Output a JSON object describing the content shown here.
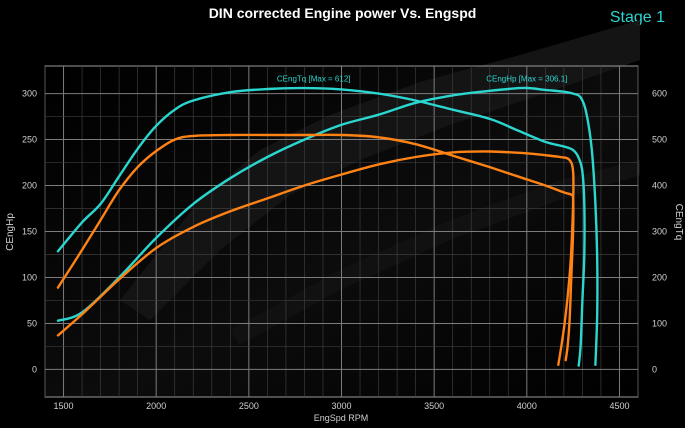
{
  "header": {
    "title": "DIN corrected Engine power Vs. Engspd",
    "stage": "Stage 1"
  },
  "chart_data": {
    "type": "line",
    "title": "DIN corrected Engine power Vs. Engspd",
    "xlabel": "EngSpd RPM",
    "ylabel": "CEngHp",
    "y2label": "CEngTq",
    "xlim": [
      1400,
      4600
    ],
    "ylim": [
      -30,
      330
    ],
    "y2lim": [
      -60,
      660
    ],
    "xticks": [
      1500,
      2000,
      2500,
      3000,
      3500,
      4000,
      4500
    ],
    "yticks": [
      0,
      50,
      100,
      150,
      200,
      250,
      300
    ],
    "y2ticks": [
      0,
      100,
      200,
      300,
      400,
      500,
      600
    ],
    "grid": true,
    "annotations": [
      {
        "text": "CEngTq [Max = 612]",
        "x": 2850,
        "y": 313
      },
      {
        "text": "CEngHp [Max = 306.1]",
        "x": 4000,
        "y": 313
      }
    ],
    "colors": {
      "tuned": "#2bd6cf",
      "stock": "#ff8214"
    },
    "series": [
      {
        "group": "tuned",
        "quantity": "torque",
        "axis": "y2",
        "points": [
          [
            1470,
            257
          ],
          [
            1600,
            320
          ],
          [
            1700,
            360
          ],
          [
            1800,
            420
          ],
          [
            1900,
            480
          ],
          [
            2000,
            530
          ],
          [
            2100,
            565
          ],
          [
            2200,
            585
          ],
          [
            2400,
            603
          ],
          [
            2600,
            610
          ],
          [
            2800,
            612
          ],
          [
            3000,
            609
          ],
          [
            3200,
            600
          ],
          [
            3400,
            585
          ],
          [
            3600,
            565
          ],
          [
            3800,
            545
          ],
          [
            3950,
            520
          ],
          [
            4100,
            495
          ],
          [
            4200,
            485
          ],
          [
            4250,
            477
          ],
          [
            4280,
            460
          ],
          [
            4300,
            430
          ],
          [
            4310,
            360
          ],
          [
            4310,
            250
          ],
          [
            4300,
            150
          ],
          [
            4290,
            50
          ],
          [
            4280,
            8
          ]
        ]
      },
      {
        "group": "tuned",
        "quantity": "power",
        "axis": "y",
        "points": [
          [
            1470,
            53
          ],
          [
            1600,
            62
          ],
          [
            1800,
            100
          ],
          [
            2000,
            143
          ],
          [
            2200,
            180
          ],
          [
            2400,
            208
          ],
          [
            2600,
            231
          ],
          [
            2800,
            250
          ],
          [
            3000,
            266
          ],
          [
            3200,
            277
          ],
          [
            3400,
            290
          ],
          [
            3600,
            298
          ],
          [
            3800,
            303
          ],
          [
            3900,
            305
          ],
          [
            4000,
            306.1
          ],
          [
            4100,
            304
          ],
          [
            4200,
            302
          ],
          [
            4250,
            300
          ],
          [
            4290,
            296
          ],
          [
            4320,
            280
          ],
          [
            4350,
            240
          ],
          [
            4370,
            180
          ],
          [
            4380,
            120
          ],
          [
            4380,
            60
          ],
          [
            4370,
            5
          ]
        ]
      },
      {
        "group": "stock",
        "quantity": "torque",
        "axis": "y2",
        "points": [
          [
            1470,
            178
          ],
          [
            1600,
            260
          ],
          [
            1700,
            325
          ],
          [
            1800,
            390
          ],
          [
            1900,
            440
          ],
          [
            2000,
            475
          ],
          [
            2100,
            500
          ],
          [
            2200,
            508
          ],
          [
            2400,
            510
          ],
          [
            2600,
            510
          ],
          [
            2800,
            510
          ],
          [
            3000,
            510
          ],
          [
            3200,
            505
          ],
          [
            3400,
            490
          ],
          [
            3600,
            465
          ],
          [
            3800,
            440
          ],
          [
            3950,
            420
          ],
          [
            4100,
            400
          ],
          [
            4200,
            385
          ],
          [
            4240,
            380
          ],
          [
            4250,
            370
          ],
          [
            4250,
            300
          ],
          [
            4240,
            200
          ],
          [
            4230,
            100
          ],
          [
            4220,
            50
          ],
          [
            4210,
            20
          ]
        ]
      },
      {
        "group": "stock",
        "quantity": "power",
        "axis": "y",
        "points": [
          [
            1470,
            37
          ],
          [
            1600,
            60
          ],
          [
            1800,
            98
          ],
          [
            2000,
            132
          ],
          [
            2200,
            155
          ],
          [
            2400,
            172
          ],
          [
            2600,
            186
          ],
          [
            2800,
            200
          ],
          [
            3000,
            212
          ],
          [
            3200,
            223
          ],
          [
            3400,
            231
          ],
          [
            3600,
            236
          ],
          [
            3800,
            237
          ],
          [
            4000,
            235
          ],
          [
            4100,
            233
          ],
          [
            4180,
            231
          ],
          [
            4230,
            228
          ],
          [
            4250,
            215
          ],
          [
            4250,
            180
          ],
          [
            4240,
            130
          ],
          [
            4230,
            100
          ],
          [
            4210,
            60
          ],
          [
            4190,
            30
          ],
          [
            4170,
            5
          ]
        ]
      }
    ]
  }
}
